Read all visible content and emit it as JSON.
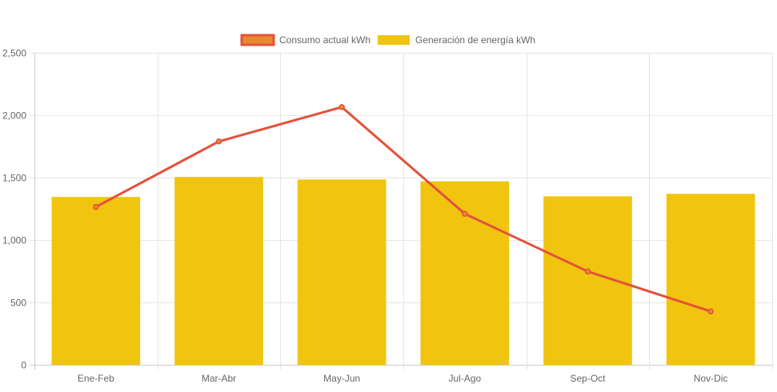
{
  "chart_data": {
    "type": "bar",
    "categories": [
      "Ene-Feb",
      "Mar-Abr",
      "May-Jun",
      "Jul-Ago",
      "Sep-Oct",
      "Nov-Dic"
    ],
    "series": [
      {
        "name": "Consumo actual kWh",
        "type": "line",
        "color": "#e4513a",
        "values": [
          1265,
          1790,
          2065,
          1210,
          748,
          428
        ]
      },
      {
        "name": "Generación de energía kWh",
        "type": "bar",
        "color": "#f1c40f",
        "values": [
          1345,
          1505,
          1485,
          1470,
          1350,
          1370
        ]
      }
    ],
    "ylim": [
      0,
      2500
    ],
    "yticks": [
      "0",
      "500",
      "1,000",
      "1,500",
      "2,000",
      "2,500"
    ],
    "ytick_values": [
      0,
      500,
      1000,
      1500,
      2000,
      2500
    ],
    "grid": true,
    "legend_position": "top-center",
    "colors": {
      "grid": "#e5e5e5",
      "axis": "#cccccc",
      "tick_text": "#666666",
      "line_legend_fill": "#e8892f"
    }
  }
}
